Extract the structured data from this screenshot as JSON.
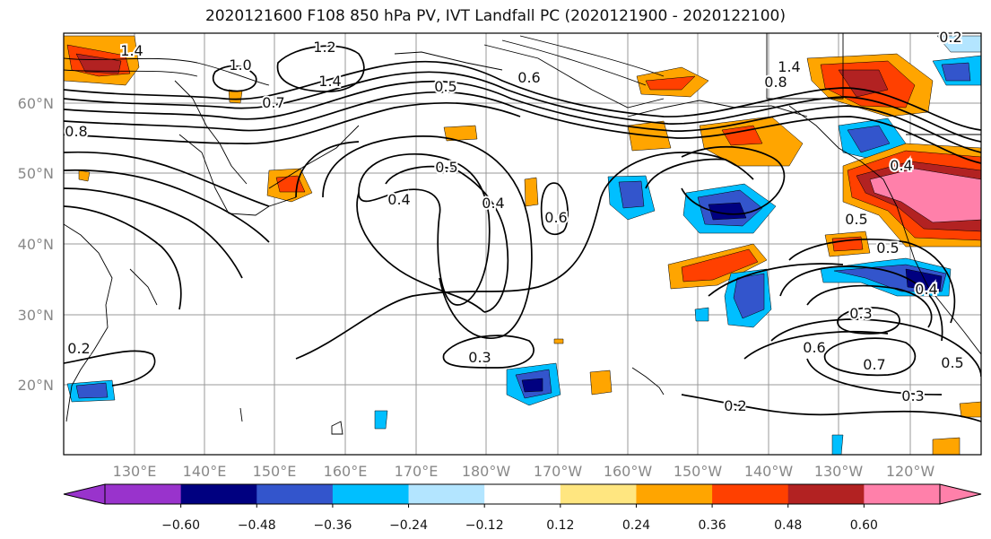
{
  "title": "2020121600 F108 850 hPa PV, IVT Landfall PC (2020121900 - 2020122100)",
  "lat_labels": [
    "60°N",
    "50°N",
    "40°N",
    "30°N",
    "20°N"
  ],
  "lon_labels": [
    "130°E",
    "140°E",
    "150°E",
    "160°E",
    "170°E",
    "180°W",
    "170°W",
    "160°W",
    "150°W",
    "140°W",
    "130°W",
    "120°W"
  ],
  "colorbar": {
    "colors": [
      "#9933cc",
      "#000080",
      "#3355cc",
      "#00bfff",
      "#b3e5ff",
      "#ffffff",
      "#ffe680",
      "#ffa500",
      "#ff4000",
      "#b22222",
      "#ff80aa"
    ],
    "tick_labels": [
      "−0.60",
      "−0.48",
      "−0.36",
      "−0.24",
      "−0.12",
      "0.12",
      "0.24",
      "0.36",
      "0.48",
      "0.60"
    ]
  },
  "contour_labels": [
    "1.2",
    "1.4",
    "1.4",
    "1.0",
    "0.8",
    "0.7",
    "0.5",
    "0.6",
    "0.4",
    "0.5",
    "0.4",
    "0.6",
    "0.2",
    "1.4",
    "0.8",
    "0.4",
    "0.5",
    "0.5",
    "0.4",
    "0.3",
    "0.6",
    "0.7",
    "0.5",
    "0.3",
    "0.2",
    "0.3",
    "0.2"
  ]
}
